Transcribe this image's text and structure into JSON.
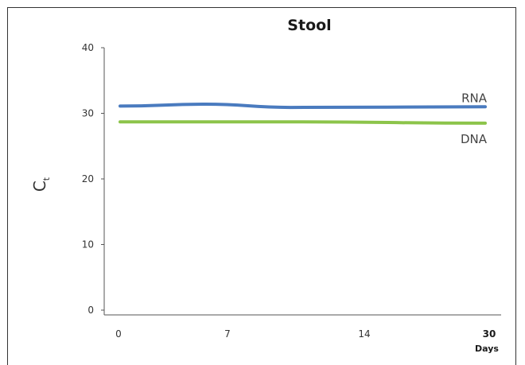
{
  "chart_data": {
    "type": "line",
    "title": "Stool",
    "ylabel": {
      "main": "C",
      "sub": "t"
    },
    "xlabel": "Days",
    "ylim": [
      0,
      40
    ],
    "xlim": [
      0,
      30
    ],
    "yticks": [
      "0",
      "10",
      "20",
      "30",
      "40"
    ],
    "xticks": [
      "0",
      "7",
      "14",
      "30"
    ],
    "grid": false,
    "series": [
      {
        "name": "RNA",
        "color": "#4a7bbf",
        "x": [
          0,
          7,
          14,
          30
        ],
        "y": [
          31.1,
          31.4,
          30.9,
          31.0
        ]
      },
      {
        "name": "DNA",
        "color": "#8cc44a",
        "x": [
          0,
          7,
          14,
          30
        ],
        "y": [
          28.7,
          28.7,
          28.7,
          28.5
        ]
      }
    ]
  }
}
